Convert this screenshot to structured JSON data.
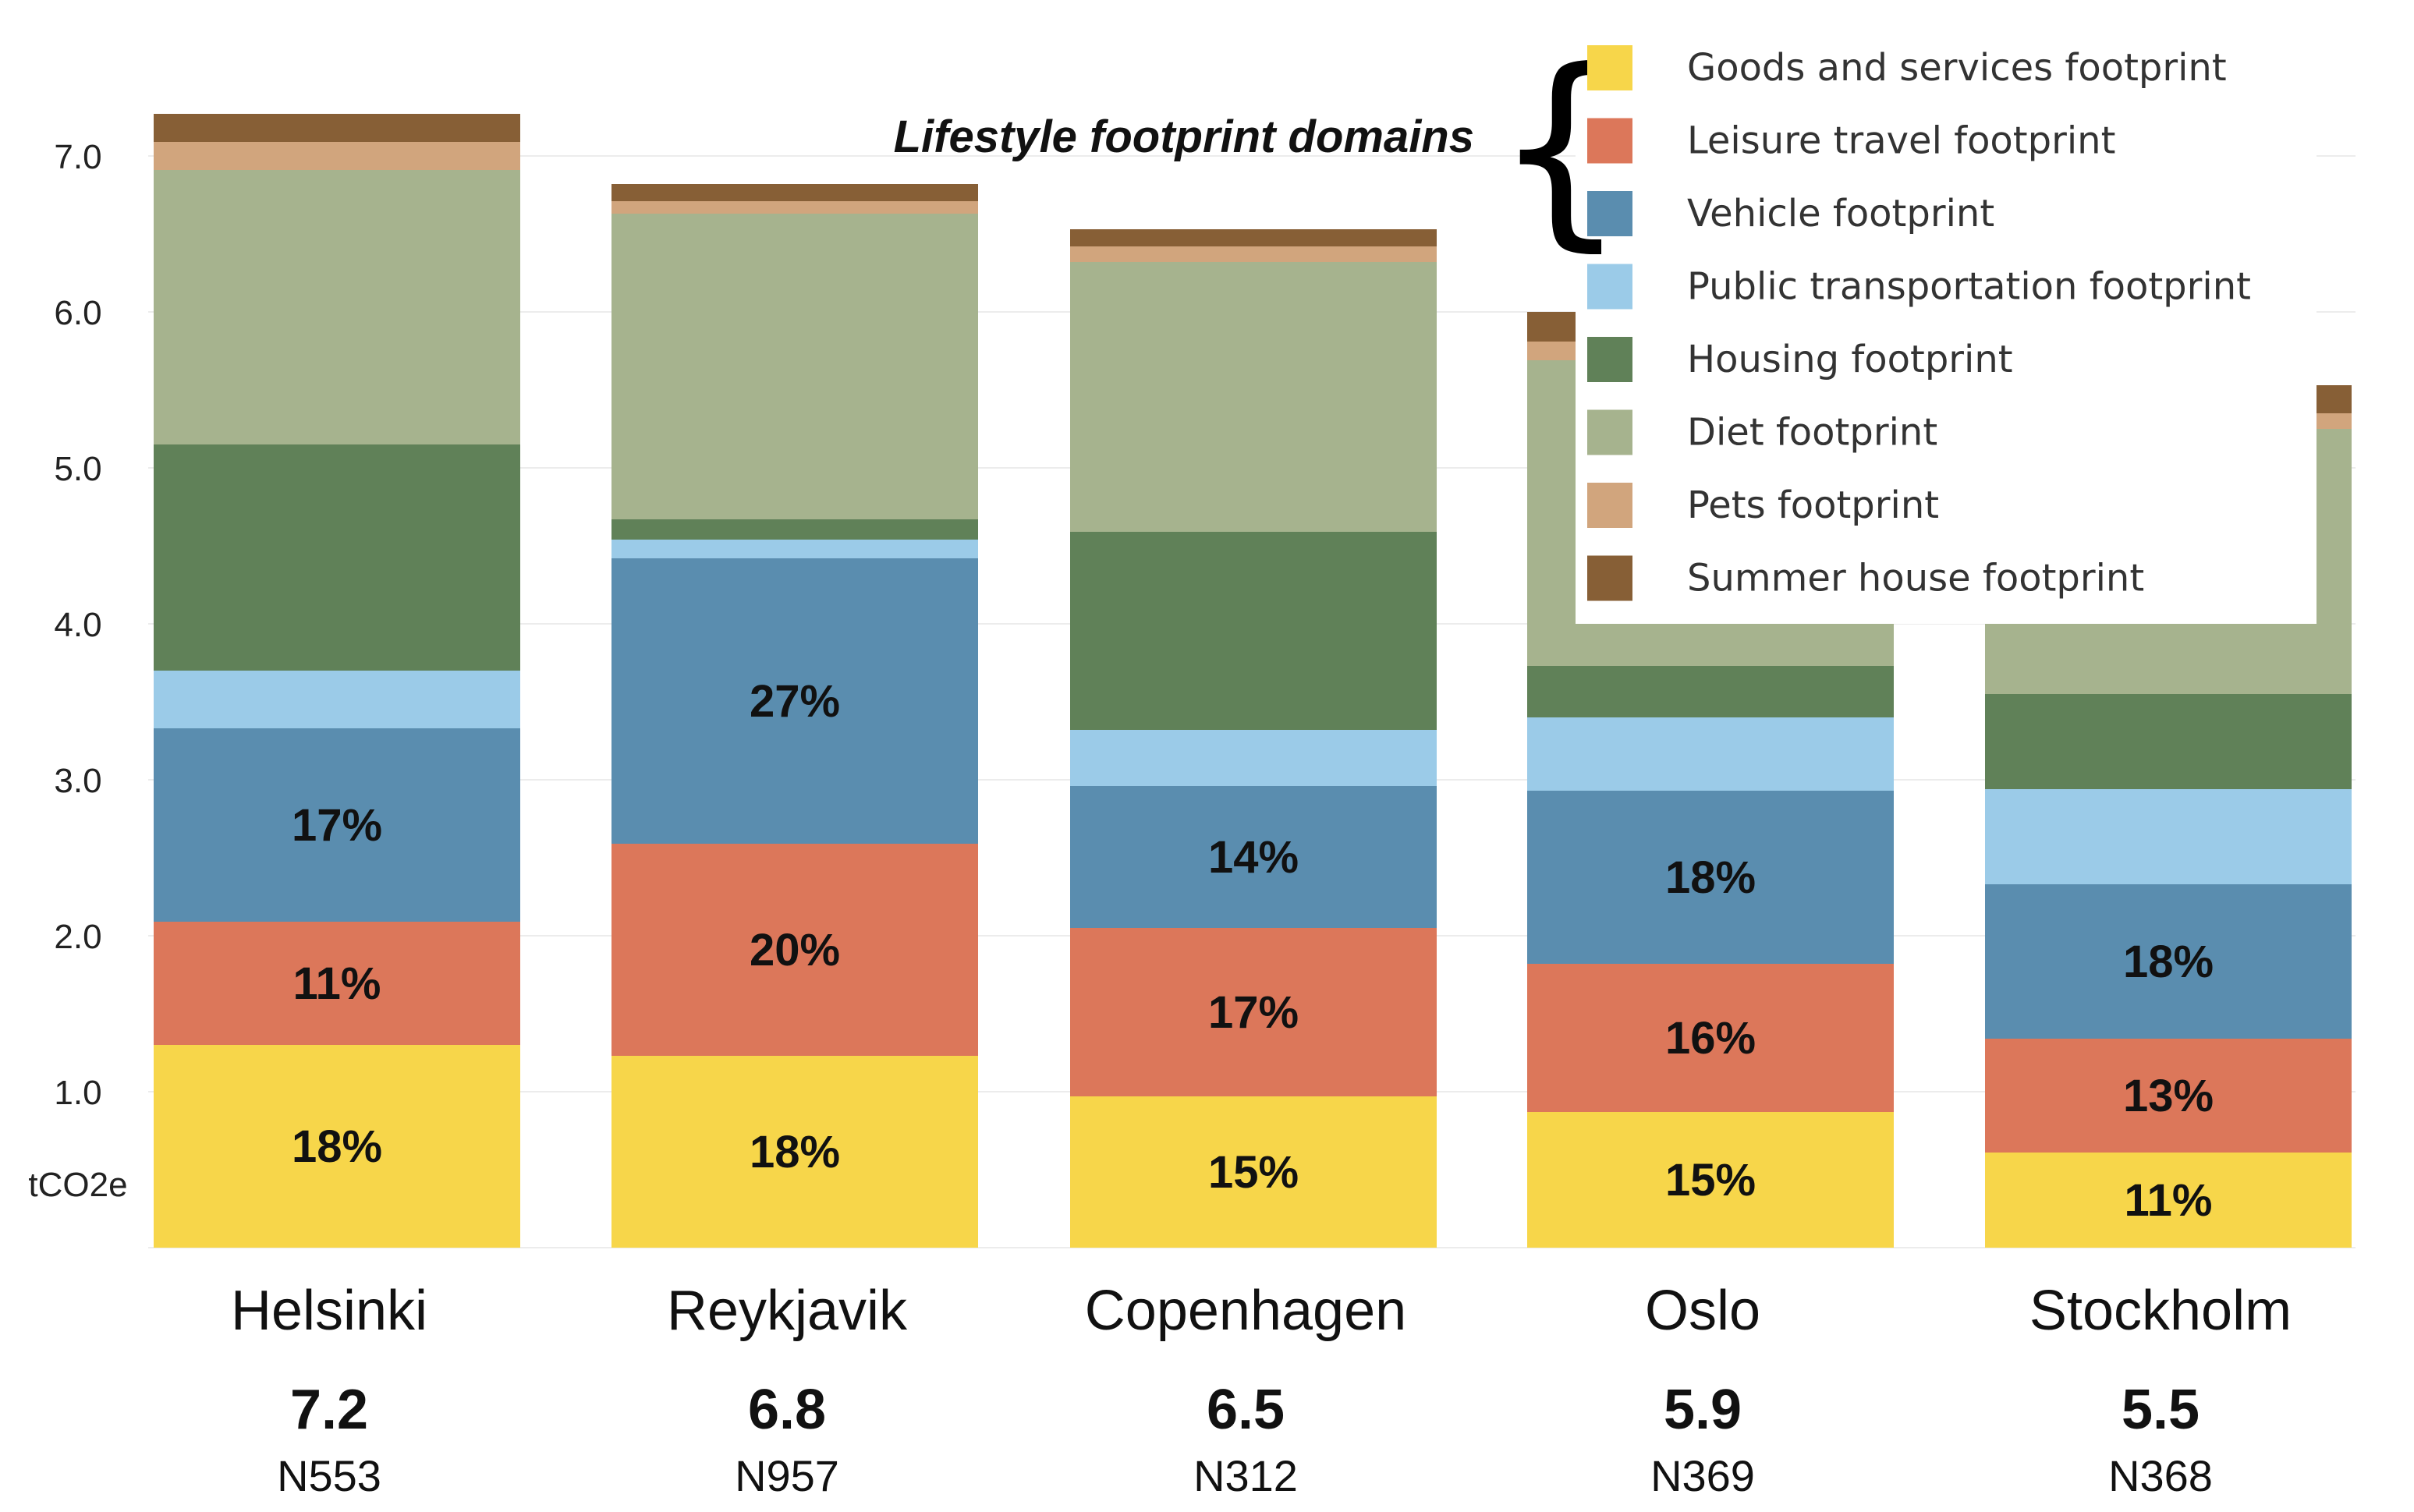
{
  "chart_data": {
    "type": "bar",
    "stacked": true,
    "categories": [
      "Helsinki",
      "Reykjavik",
      "Copenhagen",
      "Oslo",
      "Stockholm"
    ],
    "totals": [
      "7.2",
      "6.8",
      "6.5",
      "5.9",
      "5.5"
    ],
    "sample_sizes": [
      "N553",
      "N957",
      "N312",
      "N369",
      "N368"
    ],
    "ylabel": "tCO2e",
    "ylim": [
      0,
      7.4
    ],
    "yticks": [
      1.0,
      2.0,
      3.0,
      4.0,
      5.0,
      6.0,
      7.0
    ],
    "ytick_labels": [
      "1.0",
      "2.0",
      "3.0",
      "4.0",
      "5.0",
      "6.0",
      "7.0"
    ],
    "grid": true,
    "legend_title": "Lifestyle footprint domains",
    "legend_title_brace": "{",
    "legend_position": "top-right",
    "series": [
      {
        "name": "Goods and services footprint",
        "color": "#F7D64A",
        "values": [
          1.3,
          1.23,
          0.97,
          0.87,
          0.61
        ],
        "labels": [
          "18%",
          "18%",
          "15%",
          "15%",
          "11%"
        ]
      },
      {
        "name": "Leisure travel footprint",
        "color": "#DC775A",
        "values": [
          0.79,
          1.36,
          1.08,
          0.95,
          0.73
        ],
        "labels": [
          "11%",
          "20%",
          "17%",
          "16%",
          "13%"
        ]
      },
      {
        "name": "Vehicle footprint",
        "color": "#5A8DAF",
        "values": [
          1.24,
          1.83,
          0.91,
          1.11,
          0.99
        ],
        "labels": [
          "17%",
          "27%",
          "14%",
          "18%",
          "18%"
        ]
      },
      {
        "name": "Public transportation footprint",
        "color": "#9BCBE8",
        "values": [
          0.37,
          0.12,
          0.36,
          0.47,
          0.61
        ],
        "labels": [
          "",
          "",
          "",
          "",
          ""
        ]
      },
      {
        "name": "Housing footprint",
        "color": "#608158",
        "values": [
          1.45,
          0.13,
          1.27,
          0.33,
          0.61
        ],
        "labels": [
          "",
          "",
          "",
          "",
          ""
        ]
      },
      {
        "name": "Diet footprint",
        "color": "#A6B38E",
        "values": [
          1.76,
          1.96,
          1.73,
          1.96,
          1.7
        ],
        "labels": [
          "",
          "",
          "",
          "",
          ""
        ]
      },
      {
        "name": "Pets footprint",
        "color": "#D1A57D",
        "values": [
          0.18,
          0.08,
          0.1,
          0.12,
          0.1
        ],
        "labels": [
          "",
          "",
          "",
          "",
          ""
        ]
      },
      {
        "name": "Summer house footprint",
        "color": "#875F36",
        "values": [
          0.18,
          0.11,
          0.11,
          0.19,
          0.18
        ],
        "labels": [
          "",
          "",
          "",
          "",
          ""
        ]
      }
    ]
  }
}
